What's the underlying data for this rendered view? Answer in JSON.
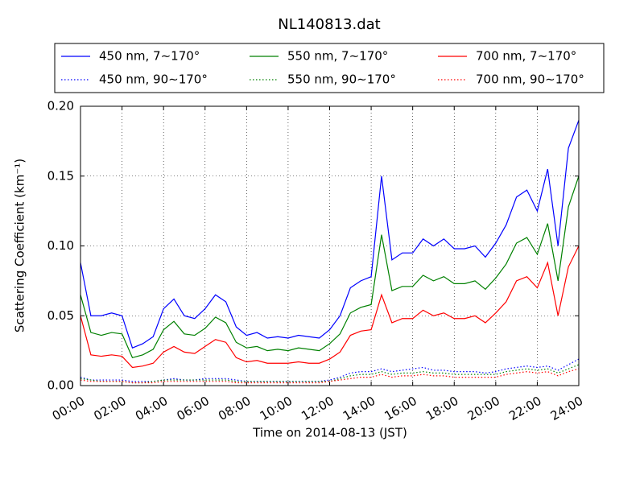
{
  "chart_data": {
    "type": "line",
    "title": "NL140813.dat",
    "xlabel": "Time on 2014-08-13 (JST)",
    "ylabel": "Scattering Coefficient (km⁻¹)",
    "x": [
      0,
      0.5,
      1,
      1.5,
      2,
      2.5,
      3,
      3.5,
      4,
      4.5,
      5,
      5.5,
      6,
      6.5,
      7,
      7.5,
      8,
      8.5,
      9,
      9.5,
      10,
      10.5,
      11,
      11.5,
      12,
      12.5,
      13,
      13.5,
      14,
      14.5,
      15,
      15.5,
      16,
      16.5,
      17,
      17.5,
      18,
      18.5,
      19,
      19.5,
      20,
      20.5,
      21,
      21.5,
      22,
      22.5,
      23,
      23.5,
      24
    ],
    "xlim": [
      0,
      24
    ],
    "xticks": [
      {
        "value": 0,
        "label": "00:00"
      },
      {
        "value": 2,
        "label": "02:00"
      },
      {
        "value": 4,
        "label": "04:00"
      },
      {
        "value": 6,
        "label": "06:00"
      },
      {
        "value": 8,
        "label": "08:00"
      },
      {
        "value": 10,
        "label": "10:00"
      },
      {
        "value": 12,
        "label": "12:00"
      },
      {
        "value": 14,
        "label": "14:00"
      },
      {
        "value": 16,
        "label": "16:00"
      },
      {
        "value": 18,
        "label": "18:00"
      },
      {
        "value": 20,
        "label": "20:00"
      },
      {
        "value": 22,
        "label": "22:00"
      },
      {
        "value": 24,
        "label": "24:00"
      }
    ],
    "ylim": [
      0,
      0.2
    ],
    "yticks": [
      {
        "value": 0,
        "label": "0.00"
      },
      {
        "value": 0.05,
        "label": "0.05"
      },
      {
        "value": 0.1,
        "label": "0.10"
      },
      {
        "value": 0.15,
        "label": "0.15"
      },
      {
        "value": 0.2,
        "label": "0.20"
      }
    ],
    "grid": true,
    "legend": "upper center",
    "series": [
      {
        "name": "450 nm, 7∼170°",
        "color": "#0000ff",
        "linestyle": "solid",
        "values": [
          0.088,
          0.05,
          0.05,
          0.052,
          0.05,
          0.027,
          0.03,
          0.035,
          0.055,
          0.062,
          0.05,
          0.048,
          0.055,
          0.065,
          0.06,
          0.042,
          0.036,
          0.038,
          0.034,
          0.035,
          0.034,
          0.036,
          0.035,
          0.034,
          0.04,
          0.05,
          0.07,
          0.075,
          0.078,
          0.15,
          0.09,
          0.095,
          0.095,
          0.105,
          0.1,
          0.105,
          0.098,
          0.098,
          0.1,
          0.092,
          0.102,
          0.115,
          0.135,
          0.14,
          0.125,
          0.155,
          0.1,
          0.17,
          0.19
        ]
      },
      {
        "name": "450 nm, 90∼170°",
        "color": "#0000ff",
        "linestyle": "dotted",
        "values": [
          0.006,
          0.004,
          0.004,
          0.004,
          0.004,
          0.003,
          0.003,
          0.003,
          0.004,
          0.005,
          0.004,
          0.004,
          0.005,
          0.005,
          0.005,
          0.004,
          0.003,
          0.003,
          0.003,
          0.003,
          0.003,
          0.003,
          0.003,
          0.003,
          0.004,
          0.006,
          0.009,
          0.01,
          0.01,
          0.012,
          0.01,
          0.011,
          0.012,
          0.013,
          0.011,
          0.011,
          0.01,
          0.01,
          0.01,
          0.009,
          0.01,
          0.012,
          0.013,
          0.014,
          0.013,
          0.014,
          0.011,
          0.015,
          0.019
        ]
      },
      {
        "name": "550 nm, 7∼170°",
        "color": "#008000",
        "linestyle": "solid",
        "values": [
          0.065,
          0.038,
          0.036,
          0.038,
          0.037,
          0.02,
          0.022,
          0.026,
          0.04,
          0.046,
          0.037,
          0.036,
          0.041,
          0.049,
          0.045,
          0.031,
          0.027,
          0.028,
          0.025,
          0.026,
          0.025,
          0.027,
          0.026,
          0.025,
          0.03,
          0.037,
          0.052,
          0.056,
          0.058,
          0.108,
          0.068,
          0.071,
          0.071,
          0.079,
          0.075,
          0.078,
          0.073,
          0.073,
          0.075,
          0.069,
          0.077,
          0.087,
          0.102,
          0.106,
          0.094,
          0.116,
          0.075,
          0.128,
          0.15
        ]
      },
      {
        "name": "550 nm, 90∼170°",
        "color": "#008000",
        "linestyle": "dotted",
        "values": [
          0.005,
          0.004,
          0.003,
          0.003,
          0.003,
          0.002,
          0.002,
          0.003,
          0.004,
          0.004,
          0.004,
          0.004,
          0.004,
          0.004,
          0.004,
          0.003,
          0.003,
          0.003,
          0.003,
          0.003,
          0.003,
          0.003,
          0.003,
          0.003,
          0.003,
          0.005,
          0.007,
          0.008,
          0.008,
          0.01,
          0.008,
          0.009,
          0.009,
          0.01,
          0.009,
          0.009,
          0.008,
          0.008,
          0.008,
          0.008,
          0.008,
          0.01,
          0.011,
          0.012,
          0.011,
          0.012,
          0.009,
          0.012,
          0.015
        ]
      },
      {
        "name": "700 nm, 7∼170°",
        "color": "#ff0000",
        "linestyle": "solid",
        "values": [
          0.05,
          0.022,
          0.021,
          0.022,
          0.021,
          0.013,
          0.014,
          0.016,
          0.024,
          0.028,
          0.024,
          0.023,
          0.028,
          0.033,
          0.031,
          0.02,
          0.017,
          0.018,
          0.016,
          0.016,
          0.016,
          0.017,
          0.016,
          0.016,
          0.019,
          0.024,
          0.036,
          0.039,
          0.04,
          0.065,
          0.045,
          0.048,
          0.048,
          0.054,
          0.05,
          0.052,
          0.048,
          0.048,
          0.05,
          0.045,
          0.052,
          0.06,
          0.075,
          0.078,
          0.07,
          0.088,
          0.05,
          0.085,
          0.1
        ]
      },
      {
        "name": "700 nm, 90∼170°",
        "color": "#ff0000",
        "linestyle": "dotted",
        "values": [
          0.004,
          0.003,
          0.003,
          0.003,
          0.003,
          0.002,
          0.002,
          0.002,
          0.003,
          0.003,
          0.003,
          0.003,
          0.003,
          0.003,
          0.003,
          0.002,
          0.002,
          0.002,
          0.002,
          0.002,
          0.002,
          0.002,
          0.002,
          0.002,
          0.003,
          0.004,
          0.005,
          0.006,
          0.006,
          0.008,
          0.006,
          0.007,
          0.007,
          0.008,
          0.007,
          0.007,
          0.006,
          0.006,
          0.006,
          0.006,
          0.006,
          0.008,
          0.009,
          0.01,
          0.009,
          0.01,
          0.007,
          0.01,
          0.012
        ]
      }
    ]
  }
}
